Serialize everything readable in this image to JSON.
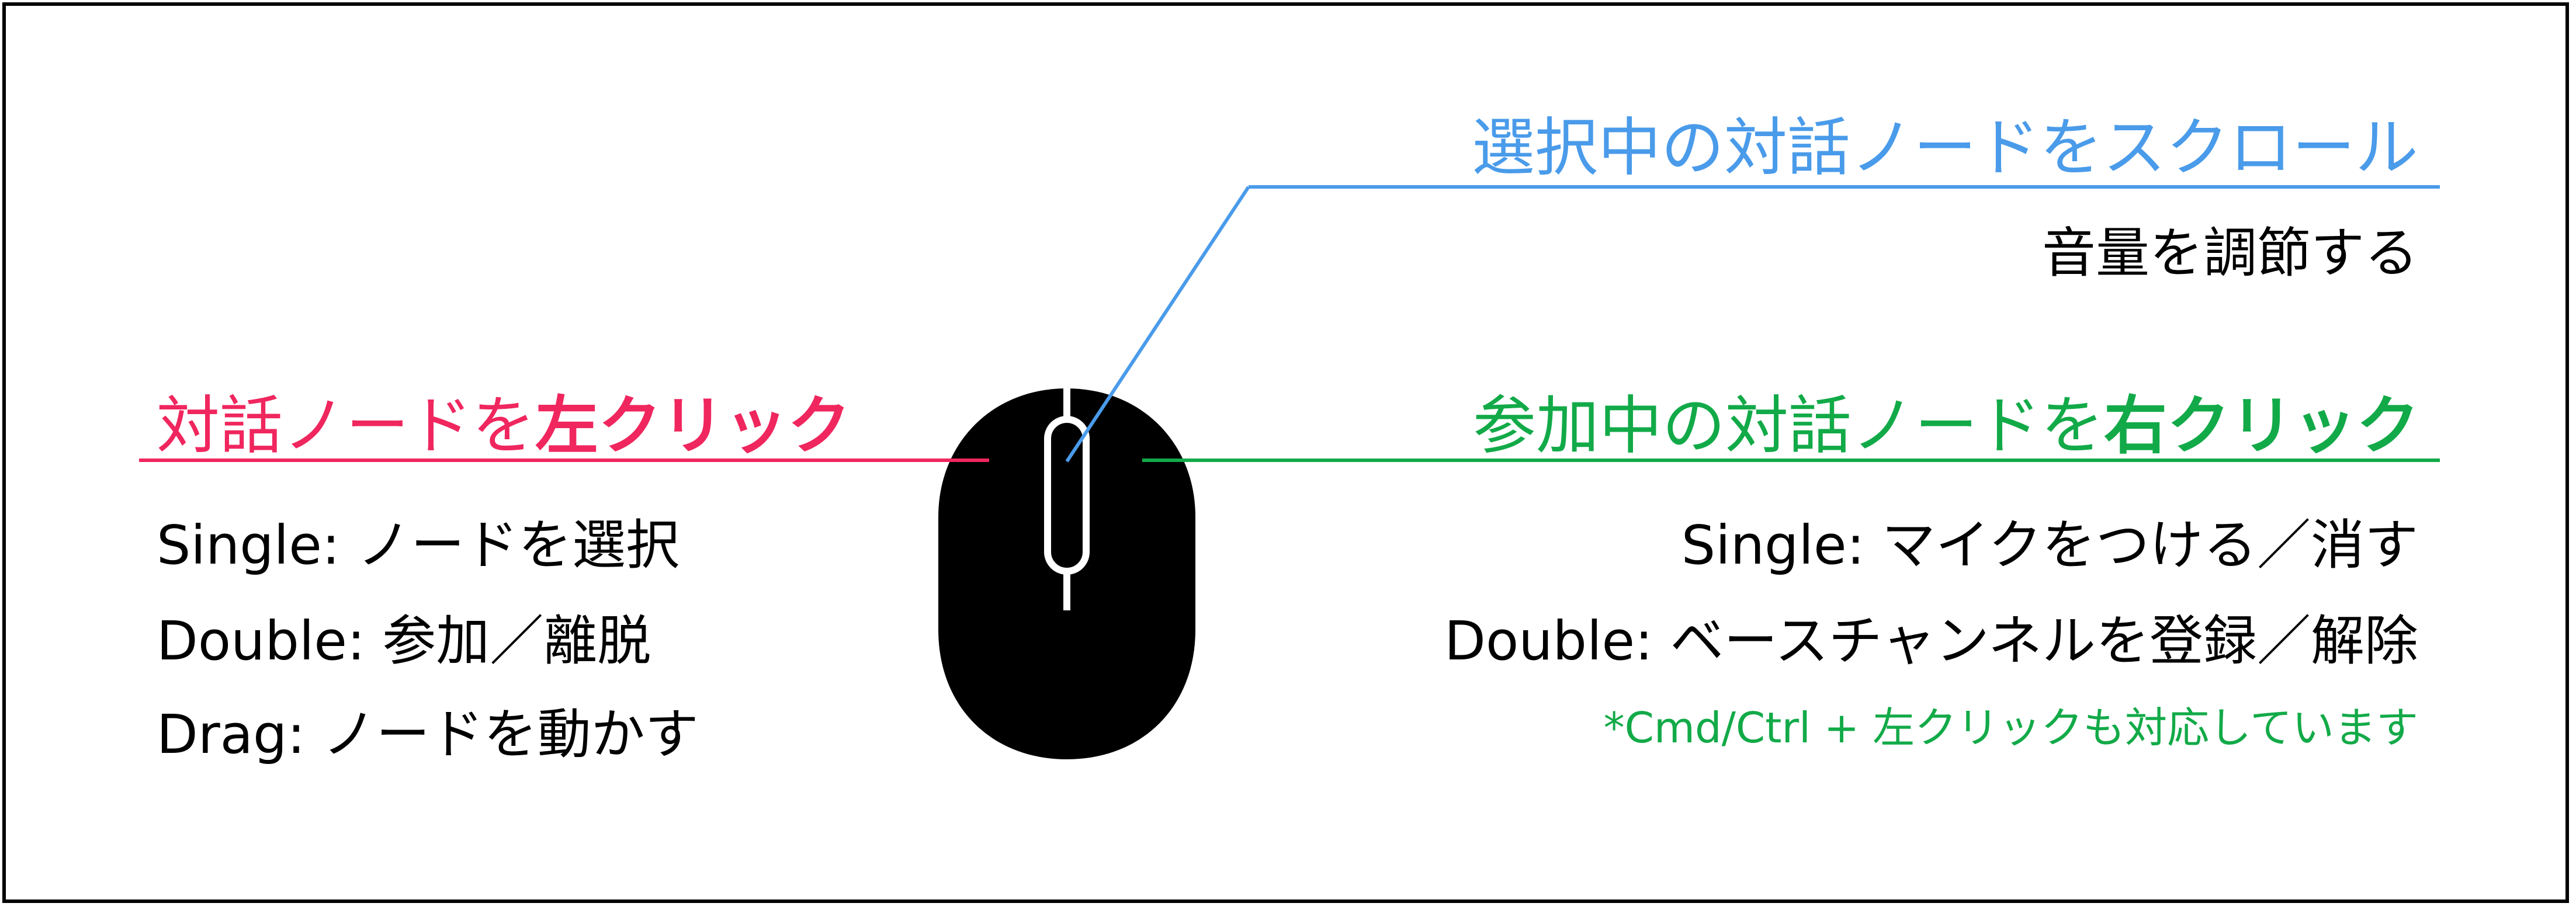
{
  "colors": {
    "left_click": "#F0265E",
    "scroll": "#4A9BEA",
    "right_click": "#12AA48",
    "text": "#000000",
    "mouse": "#000000",
    "background": "#FFFFFF"
  },
  "mouse": {
    "icon": "mouse-icon",
    "parts": [
      "mouse-body",
      "scroll-wheel"
    ]
  },
  "left_click": {
    "heading_prefix": "対話ノードを",
    "heading_emphasis": "左クリック",
    "items": [
      {
        "term": "Single:",
        "action": "ノードを選択"
      },
      {
        "term": "Double:",
        "action": "参加／離脱"
      },
      {
        "term": "Drag:",
        "action": "ノードを動かす"
      }
    ]
  },
  "scroll": {
    "heading": "選択中の対話ノードをスクロール",
    "action": "音量を調節する"
  },
  "right_click": {
    "heading_prefix": "参加中の対話ノードを",
    "heading_emphasis": "右クリック",
    "items": [
      {
        "term": "Single:",
        "action": "マイクをつける／消す"
      },
      {
        "term": "Double:",
        "action": "ベースチャンネルを登録／解除"
      }
    ],
    "note": "*Cmd/Ctrl + 左クリックも対応しています"
  }
}
